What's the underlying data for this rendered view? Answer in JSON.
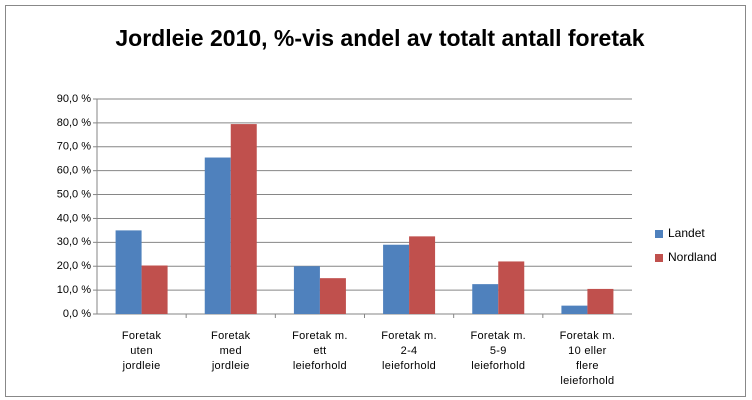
{
  "chart_data": {
    "type": "bar",
    "title": "Jordleie 2010, %-vis andel av totalt antall foretak",
    "categories": [
      "Foretak\nuten\njordleie",
      "Foretak\nmed\njordleie",
      "Foretak m.\nett\nleieforhold",
      "Foretak m.\n2-4\nleieforhold",
      "Foretak m.\n5-9\nleieforhold",
      "Foretak m.\n10 eller\nflere\nleieforhold"
    ],
    "series": [
      {
        "name": "Landet",
        "color": "#4f81bd",
        "values": [
          35.0,
          65.5,
          20.0,
          29.0,
          12.5,
          3.5
        ]
      },
      {
        "name": "Nordland",
        "color": "#c0504d",
        "values": [
          20.3,
          79.5,
          15.0,
          32.5,
          22.0,
          10.5
        ]
      }
    ],
    "ylim": [
      0,
      90
    ],
    "yticks": [
      {
        "value": 0,
        "label": "0,0 %"
      },
      {
        "value": 10,
        "label": "10,0 %"
      },
      {
        "value": 20,
        "label": "20,0 %"
      },
      {
        "value": 30,
        "label": "30,0 %"
      },
      {
        "value": 40,
        "label": "40,0 %"
      },
      {
        "value": 50,
        "label": "50,0 %"
      },
      {
        "value": 60,
        "label": "60,0 %"
      },
      {
        "value": 70,
        "label": "70,0 %"
      },
      {
        "value": 80,
        "label": "80,0 %"
      },
      {
        "value": 90,
        "label": "90,0 %"
      }
    ],
    "grid": true,
    "legend": "right"
  }
}
